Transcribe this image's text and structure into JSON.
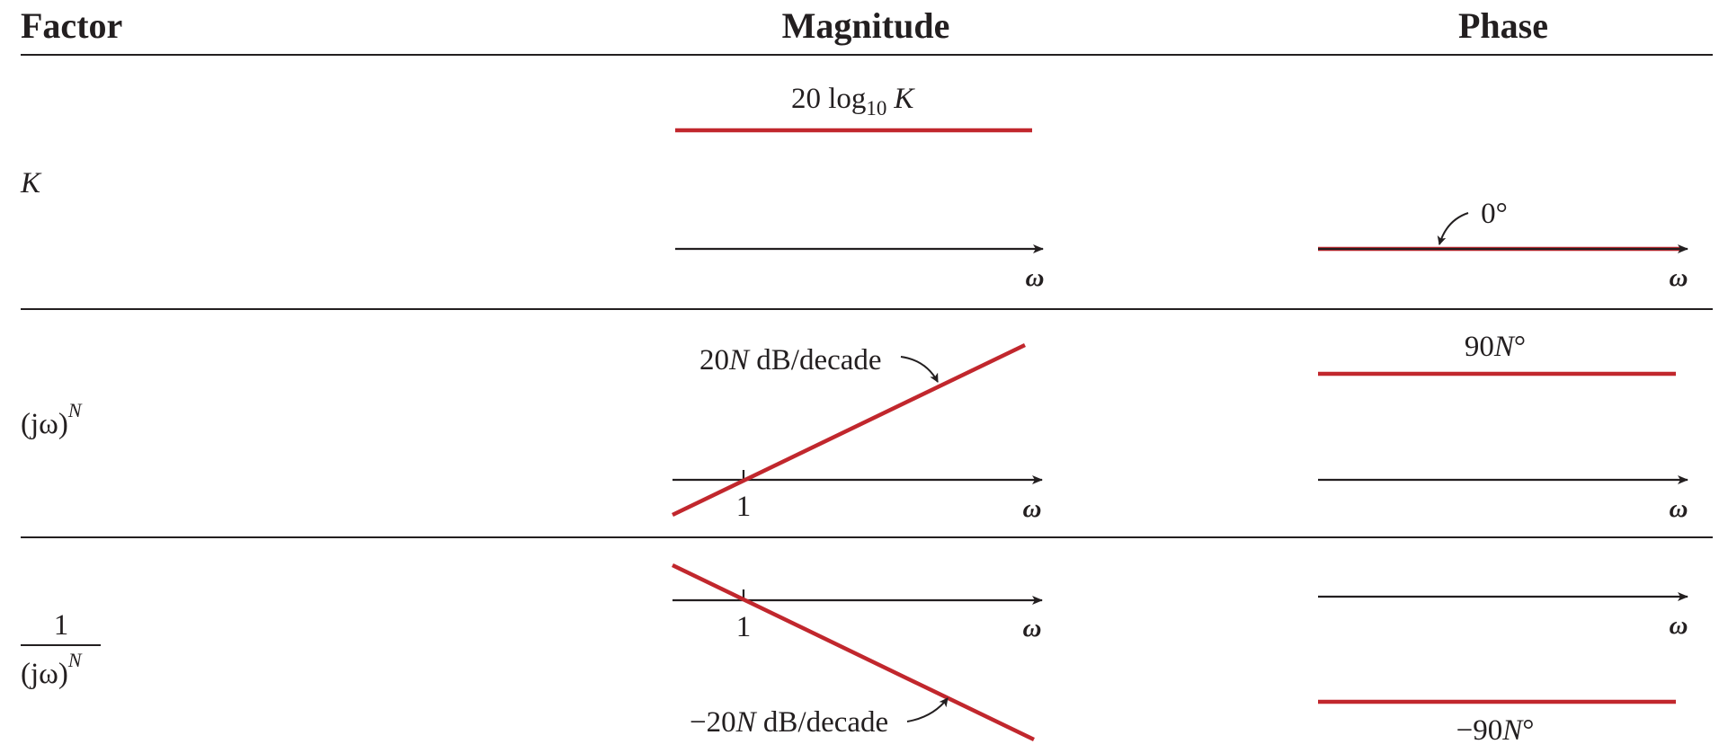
{
  "headers": {
    "factor": "Factor",
    "magnitude": "Magnitude",
    "phase": "Phase"
  },
  "rows": [
    {
      "factor_main": "K",
      "magnitude": {
        "level_prefix": "20 log",
        "level_sub": "10",
        "level_var": "K",
        "axis_label": "ω"
      },
      "phase": {
        "value": "0°",
        "axis_label": "ω"
      }
    },
    {
      "factor_main": "(jω)",
      "factor_exp": "N",
      "magnitude": {
        "slope_num": "20",
        "slope_var": "N",
        "slope_unit": " dB/decade",
        "tick_label": "1",
        "axis_label": "ω"
      },
      "phase": {
        "value_num": "90",
        "value_var": "N",
        "value_unit": "°",
        "axis_label": "ω"
      }
    },
    {
      "factor_numerator": "1",
      "factor_main": "(jω)",
      "factor_exp": "N",
      "magnitude": {
        "slope_num": "−20",
        "slope_var": "N",
        "slope_unit": " dB/decade",
        "tick_label": "1",
        "axis_label": "ω"
      },
      "phase": {
        "value_num": "−90",
        "value_var": "N",
        "value_unit": "°",
        "axis_label": "ω"
      }
    }
  ],
  "colors": {
    "curve": "#c1272d",
    "ink": "#231f20",
    "background": "#ffffff"
  }
}
